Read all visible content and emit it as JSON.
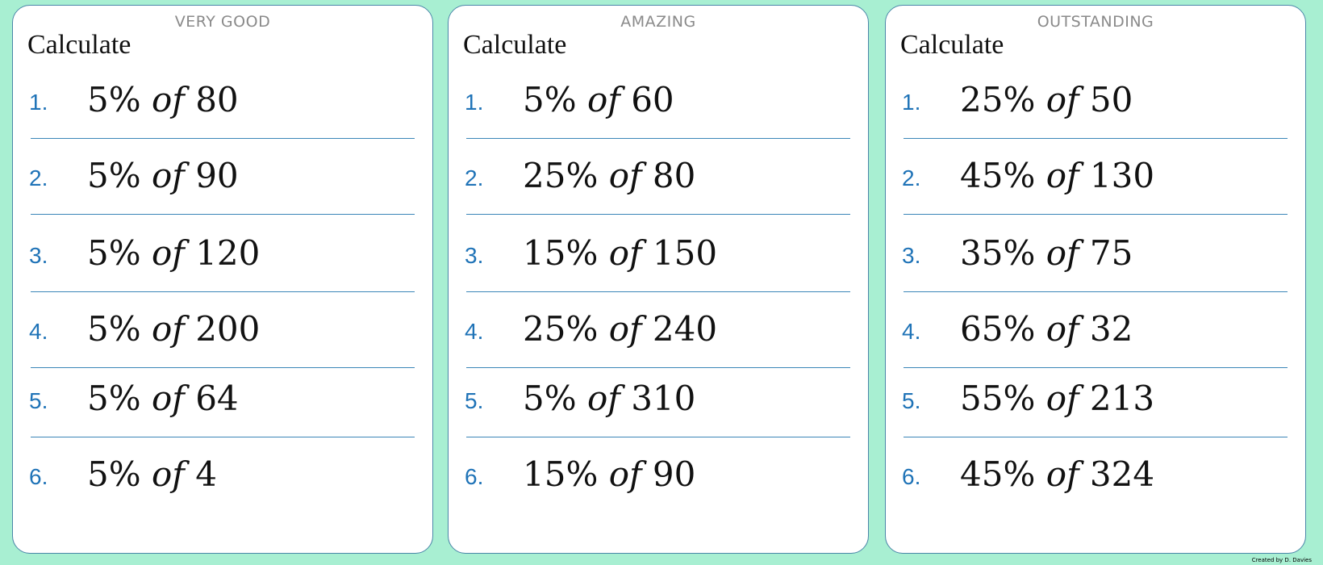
{
  "cards": [
    {
      "heading": "VERY GOOD",
      "instruction": "Calculate",
      "questions": [
        {
          "num": "1.",
          "pct": "5%",
          "of": "of",
          "n": "80"
        },
        {
          "num": "2.",
          "pct": "5%",
          "of": "of",
          "n": "90"
        },
        {
          "num": "3.",
          "pct": "5%",
          "of": "of",
          "n": "120"
        },
        {
          "num": "4.",
          "pct": "5%",
          "of": "of",
          "n": "200"
        },
        {
          "num": "5.",
          "pct": "5%",
          "of": "of",
          "n": "64"
        },
        {
          "num": "6.",
          "pct": "5%",
          "of": "of",
          "n": "4"
        }
      ]
    },
    {
      "heading": "AMAZING",
      "instruction": "Calculate",
      "questions": [
        {
          "num": "1.",
          "pct": "5%",
          "of": "of",
          "n": "60"
        },
        {
          "num": "2.",
          "pct": "25%",
          "of": "of",
          "n": "80"
        },
        {
          "num": "3.",
          "pct": "15%",
          "of": "of",
          "n": "150"
        },
        {
          "num": "4.",
          "pct": "25%",
          "of": "of",
          "n": "240"
        },
        {
          "num": "5.",
          "pct": "5%",
          "of": "of",
          "n": "310"
        },
        {
          "num": "6.",
          "pct": "15%",
          "of": "of",
          "n": "90"
        }
      ]
    },
    {
      "heading": "OUTSTANDING",
      "instruction": "Calculate",
      "questions": [
        {
          "num": "1.",
          "pct": "25%",
          "of": "of",
          "n": "50"
        },
        {
          "num": "2.",
          "pct": "45%",
          "of": "of",
          "n": "130"
        },
        {
          "num": "3.",
          "pct": "35%",
          "of": "of",
          "n": "75"
        },
        {
          "num": "4.",
          "pct": "65%",
          "of": "of",
          "n": "32"
        },
        {
          "num": "5.",
          "pct": "55%",
          "of": "of",
          "n": "213"
        },
        {
          "num": "6.",
          "pct": "45%",
          "of": "of",
          "n": "324"
        }
      ]
    }
  ],
  "credit": "Created by D. Davies"
}
